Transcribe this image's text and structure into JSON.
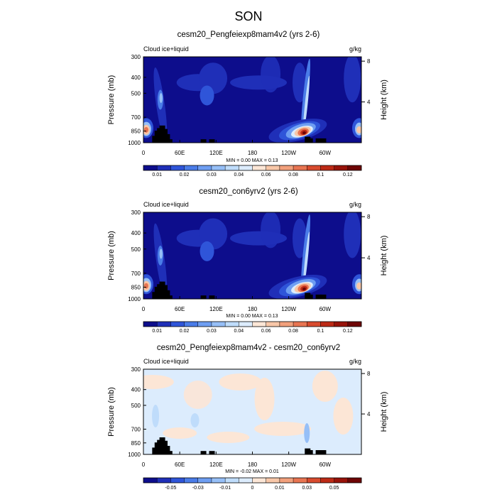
{
  "figure_title": "SON",
  "chart_data": [
    {
      "type": "heatmap",
      "title": "cesm20_Pengfeiexp8mam4v2 (yrs 2-6)",
      "left_label": "Cloud ice+liquid",
      "right_label": "g/kg",
      "ylabel": "Pressure (mb)",
      "ylabel_right": "Height (km)",
      "x_ticks": [
        "0",
        "60E",
        "120E",
        "180",
        "120W",
        "60W"
      ],
      "y_ticks": [
        300,
        400,
        500,
        700,
        850,
        1000
      ],
      "y_ticks_right": [
        8,
        4
      ],
      "ylim": [
        1000,
        300
      ],
      "xlim": [
        0,
        360
      ],
      "stats": "MIN =   0.00  MAX =   0.13",
      "min": 0.0,
      "max": 0.13,
      "colorbar": {
        "labels": [
          "0.01",
          "0.02",
          "0.03",
          "0.04",
          "0.06",
          "0.08",
          "0.1",
          "0.12"
        ],
        "colors": [
          "#0d0d8c",
          "#1f2fb8",
          "#2f55d9",
          "#4a7ce8",
          "#6e9ef2",
          "#96bff7",
          "#bfdcfb",
          "#dcecfd",
          "#fce6d6",
          "#f8c7a8",
          "#f2a07c",
          "#e87552",
          "#d84b2e",
          "#bd2a16",
          "#98130a",
          "#6e0505"
        ]
      }
    },
    {
      "type": "heatmap",
      "title": "cesm20_con6yrv2 (yrs 2-6)",
      "left_label": "Cloud ice+liquid",
      "right_label": "g/kg",
      "ylabel": "Pressure (mb)",
      "ylabel_right": "Height (km)",
      "x_ticks": [
        "0",
        "60E",
        "120E",
        "180",
        "120W",
        "60W"
      ],
      "y_ticks": [
        300,
        400,
        500,
        700,
        850,
        1000
      ],
      "y_ticks_right": [
        8,
        4
      ],
      "ylim": [
        1000,
        300
      ],
      "xlim": [
        0,
        360
      ],
      "stats": "MIN =   0.00  MAX =   0.13",
      "min": 0.0,
      "max": 0.13,
      "colorbar": {
        "labels": [
          "0.01",
          "0.02",
          "0.03",
          "0.04",
          "0.06",
          "0.08",
          "0.1",
          "0.12"
        ],
        "colors": [
          "#0d0d8c",
          "#1f2fb8",
          "#2f55d9",
          "#4a7ce8",
          "#6e9ef2",
          "#96bff7",
          "#bfdcfb",
          "#dcecfd",
          "#fce6d6",
          "#f8c7a8",
          "#f2a07c",
          "#e87552",
          "#d84b2e",
          "#bd2a16",
          "#98130a",
          "#6e0505"
        ]
      }
    },
    {
      "type": "heatmap",
      "title": "cesm20_Pengfeiexp8mam4v2 - cesm20_con6yrv2",
      "left_label": "Cloud ice+liquid",
      "right_label": "g/kg",
      "ylabel": "Pressure (mb)",
      "ylabel_right": "Height (km)",
      "x_ticks": [
        "0",
        "60E",
        "120E",
        "180",
        "120W",
        "60W"
      ],
      "y_ticks": [
        300,
        400,
        500,
        700,
        850,
        1000
      ],
      "y_ticks_right": [
        8,
        4
      ],
      "ylim": [
        1000,
        300
      ],
      "xlim": [
        0,
        360
      ],
      "stats": "MIN =  -0.02  MAX =   0.01",
      "min": -0.02,
      "max": 0.01,
      "colorbar": {
        "labels": [
          "-0.05",
          "-0.03",
          "-0.01",
          "0",
          "0.01",
          "0.03",
          "0.05"
        ],
        "colors": [
          "#0d0d8c",
          "#1f2fb8",
          "#2f55d9",
          "#4a7ce8",
          "#6e9ef2",
          "#96bff7",
          "#bfdcfb",
          "#dcecfd",
          "#fce6d6",
          "#f8c7a8",
          "#f2a07c",
          "#e87552",
          "#d84b2e",
          "#bd2a16",
          "#98130a",
          "#6e0505"
        ]
      }
    }
  ]
}
